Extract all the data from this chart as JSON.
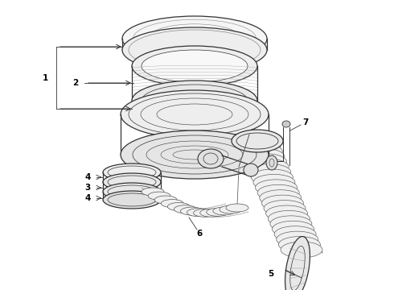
{
  "bg_color": "#ffffff",
  "line_color": "#333333",
  "label_color": "#000000",
  "fig_width": 4.9,
  "fig_height": 3.6,
  "dpi": 100,
  "lw_main": 0.9,
  "lw_thin": 0.5,
  "lw_label": 0.6,
  "label_fs": 7.5
}
